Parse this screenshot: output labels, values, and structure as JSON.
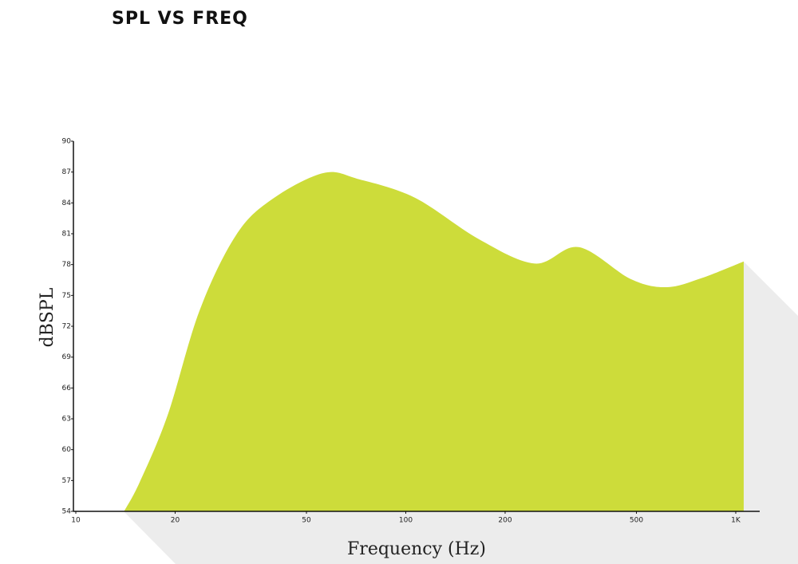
{
  "chart_data": {
    "type": "area",
    "title": "SPL VS FREQ",
    "x_label": "Frequency (Hz)",
    "y_label": "dBSPL",
    "x": [
      14,
      15.6,
      19,
      23.7,
      30.5,
      39.1,
      56.2,
      72.2,
      106.6,
      166,
      246,
      334,
      480,
      617,
      791,
      1057
    ],
    "values": [
      54,
      56.8,
      63.4,
      73.5,
      80.8,
      84.3,
      86.9,
      86.3,
      84.5,
      80.5,
      78.1,
      79.7,
      76.6,
      75.8,
      76.7,
      78.3
    ],
    "color": "#cddc3a",
    "xscale": "log",
    "xlim": [
      10,
      1000
    ],
    "ylim": [
      54,
      90
    ],
    "xticks": [
      10,
      20,
      50,
      100,
      200,
      500,
      {
        "value": 1000,
        "label": "1K"
      }
    ],
    "yticks": [
      54,
      57,
      60,
      63,
      66,
      69,
      72,
      75,
      78,
      81,
      84,
      87,
      90
    ]
  }
}
